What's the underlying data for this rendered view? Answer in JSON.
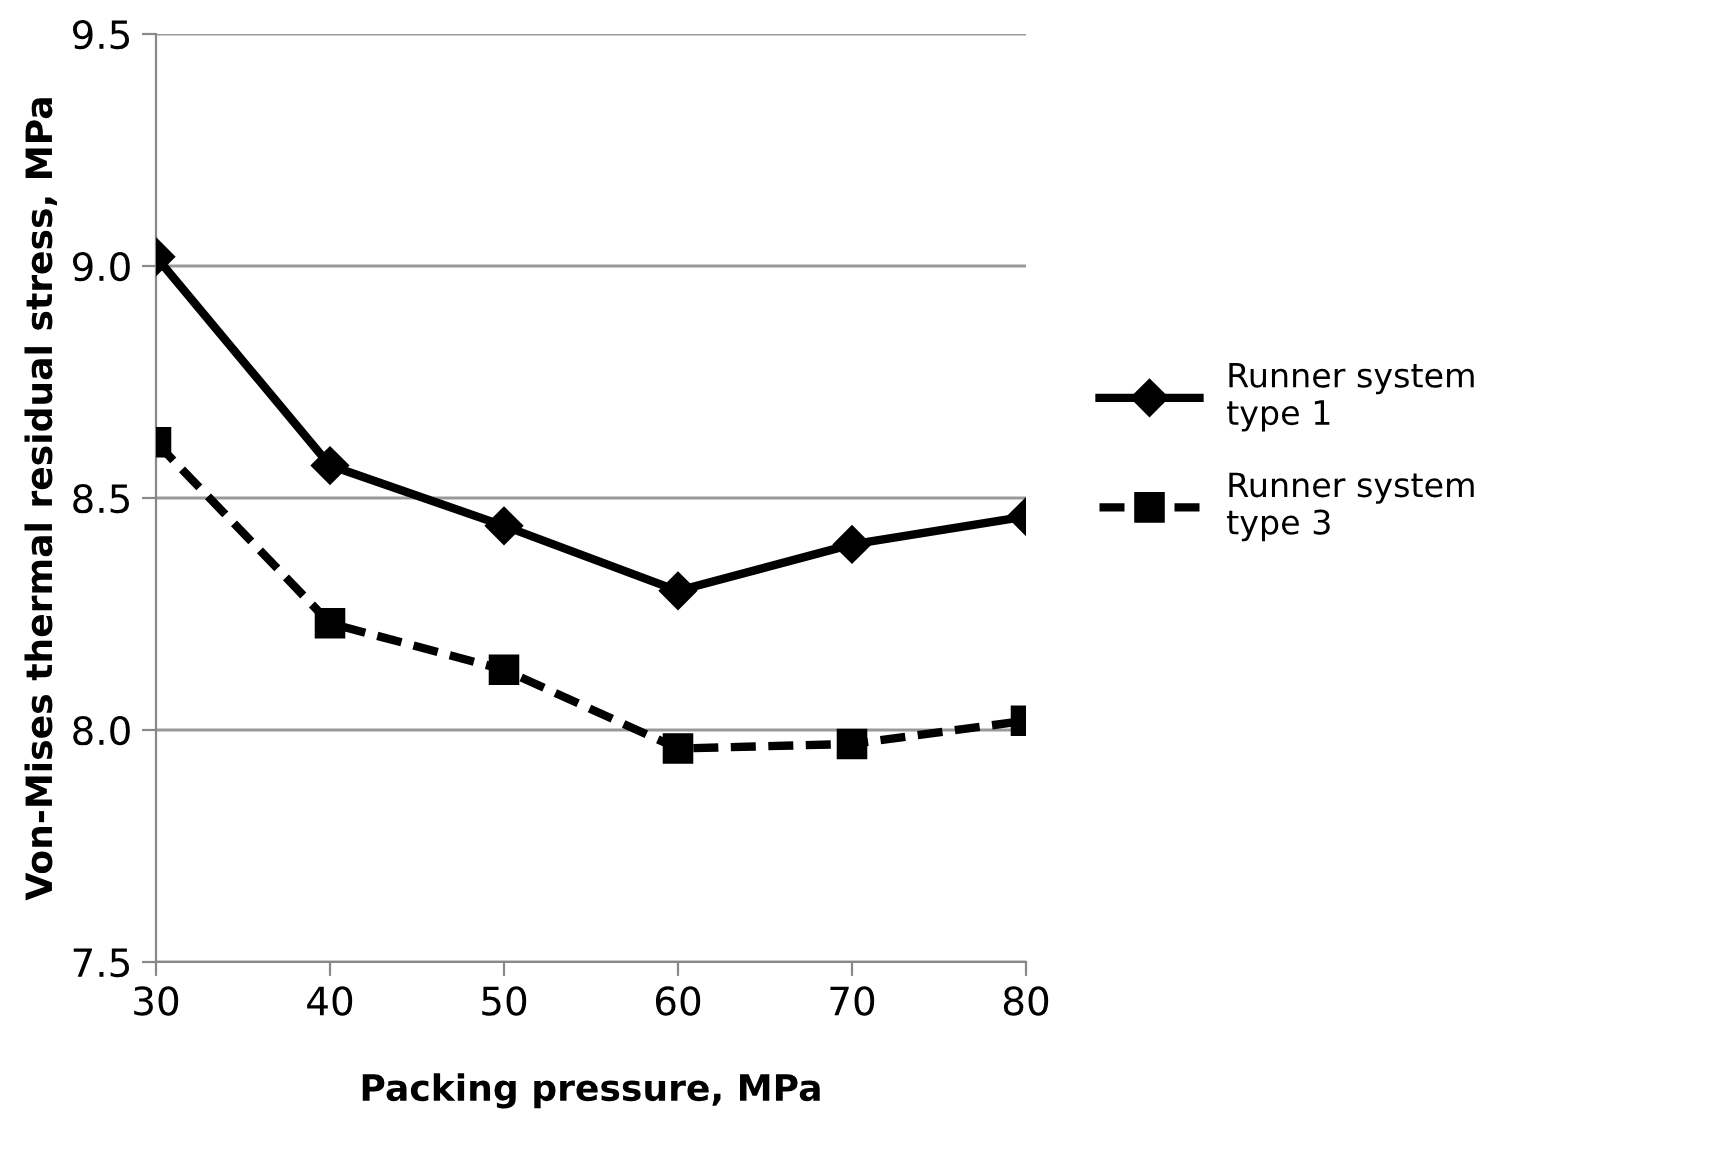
{
  "chart_data": {
    "type": "line",
    "xlabel": "Packing pressure, MPa",
    "ylabel": "Von-Mises thermal residual stress, MPa",
    "x": [
      30,
      40,
      50,
      60,
      70,
      80
    ],
    "series": [
      {
        "name": "Runner system\ntype 1",
        "color": "#000000",
        "marker": "diamond",
        "line_style": "solid",
        "values": [
          9.02,
          8.57,
          8.44,
          8.3,
          8.4,
          8.46
        ]
      },
      {
        "name": "Runner system\ntype 3",
        "color": "#000000",
        "marker": "square",
        "line_style": "dashed",
        "values": [
          8.62,
          8.23,
          8.13,
          7.96,
          7.97,
          8.02
        ]
      }
    ],
    "xlim": [
      30,
      80
    ],
    "xticks": [
      30,
      40,
      50,
      60,
      70,
      80
    ],
    "ylim": [
      7.5,
      9.5
    ],
    "yticks": [
      {
        "value": 7.5,
        "label": "7.5"
      },
      {
        "value": 8.0,
        "label": "8.0"
      },
      {
        "value": 8.5,
        "label": "8.5"
      },
      {
        "value": 9.0,
        "label": "9.0"
      },
      {
        "value": 9.5,
        "label": "9.5"
      }
    ],
    "grid": "y",
    "legend": "right"
  }
}
